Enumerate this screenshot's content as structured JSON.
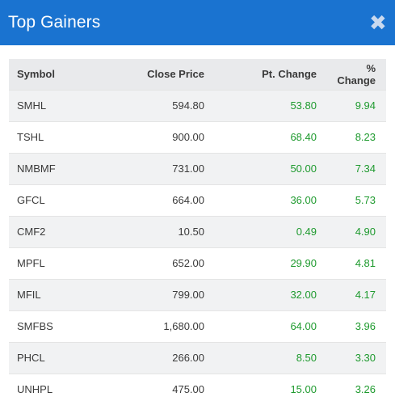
{
  "header": {
    "title": "Top Gainers",
    "close_glyph": "✖"
  },
  "table": {
    "columns": [
      "Symbol",
      "Close Price",
      "Pt. Change",
      "% Change"
    ],
    "rows": [
      {
        "symbol": "SMHL",
        "close": "594.80",
        "pt": "53.80",
        "pct": "9.94"
      },
      {
        "symbol": "TSHL",
        "close": "900.00",
        "pt": "68.40",
        "pct": "8.23"
      },
      {
        "symbol": "NMBMF",
        "close": "731.00",
        "pt": "50.00",
        "pct": "7.34"
      },
      {
        "symbol": "GFCL",
        "close": "664.00",
        "pt": "36.00",
        "pct": "5.73"
      },
      {
        "symbol": "CMF2",
        "close": "10.50",
        "pt": "0.49",
        "pct": "4.90"
      },
      {
        "symbol": "MPFL",
        "close": "652.00",
        "pt": "29.90",
        "pct": "4.81"
      },
      {
        "symbol": "MFIL",
        "close": "799.00",
        "pt": "32.00",
        "pct": "4.17"
      },
      {
        "symbol": "SMFBS",
        "close": "1,680.00",
        "pt": "64.00",
        "pct": "3.96"
      },
      {
        "symbol": "PHCL",
        "close": "266.00",
        "pt": "8.50",
        "pct": "3.30"
      },
      {
        "symbol": "UNHPL",
        "close": "475.00",
        "pt": "15.00",
        "pct": "3.26"
      }
    ]
  },
  "colors": {
    "header_bg": "#1a73d0",
    "positive": "#1e9a2e"
  }
}
